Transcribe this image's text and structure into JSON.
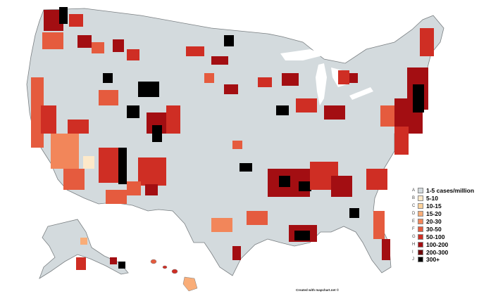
{
  "legend": {
    "items": [
      {
        "letter": "A",
        "label": "1-5 cases/million",
        "color": "#d3dadd"
      },
      {
        "letter": "B",
        "label": "5-10",
        "color": "#fde9c9"
      },
      {
        "letter": "C",
        "label": "10-15",
        "color": "#fcd29a"
      },
      {
        "letter": "D",
        "label": "15-20",
        "color": "#f9ad78"
      },
      {
        "letter": "E",
        "label": "20-30",
        "color": "#f2865a"
      },
      {
        "letter": "F",
        "label": "30-50",
        "color": "#e55b3e"
      },
      {
        "letter": "G",
        "label": "50-100",
        "color": "#cf2e24"
      },
      {
        "letter": "H",
        "label": "100-200",
        "color": "#a30e12"
      },
      {
        "letter": "I",
        "label": "200-300",
        "color": "#6e0508"
      },
      {
        "letter": "J",
        "label": "300+",
        "color": "#000000"
      }
    ]
  },
  "credit": "Created with mapchart.net ©",
  "colors": {
    "background": "#ffffff",
    "county_border": "#7a7f82",
    "base_fill": "#d3dadd"
  }
}
